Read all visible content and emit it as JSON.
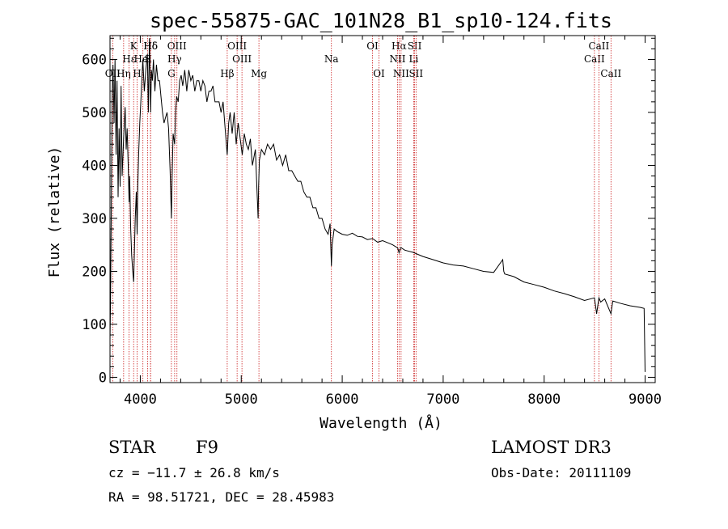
{
  "chart_data": {
    "type": "line",
    "title": "spec-55875-GAC_101N28_B1_sp10-124.fits",
    "xlabel": "Wavelength (Å)",
    "ylabel": "Flux (relative)",
    "xlim": [
      3700,
      9100
    ],
    "ylim": [
      -10,
      645
    ],
    "x_ticks": [
      4000,
      5000,
      6000,
      7000,
      8000,
      9000
    ],
    "y_ticks": [
      0,
      100,
      200,
      300,
      400,
      500,
      600
    ],
    "x_tick_labels": [
      "4000",
      "5000",
      "6000",
      "7000",
      "8000",
      "9000"
    ],
    "y_tick_labels": [
      "0",
      "100",
      "200",
      "300",
      "400",
      "500",
      "600"
    ],
    "grid": false,
    "series": [
      {
        "name": "flux",
        "x": [
          3700,
          3705,
          3712,
          3720,
          3730,
          3740,
          3750,
          3760,
          3770,
          3780,
          3790,
          3800,
          3810,
          3820,
          3835,
          3850,
          3860,
          3870,
          3880,
          3889,
          3895,
          3905,
          3915,
          3925,
          3934,
          3942,
          3950,
          3960,
          3968,
          3975,
          3985,
          3995,
          4005,
          4015,
          4025,
          4040,
          4055,
          4070,
          4080,
          4090,
          4102,
          4110,
          4120,
          4130,
          4145,
          4160,
          4175,
          4190,
          4205,
          4220,
          4235,
          4250,
          4265,
          4280,
          4295,
          4308,
          4315,
          4325,
          4340,
          4350,
          4360,
          4375,
          4390,
          4405,
          4420,
          4440,
          4460,
          4480,
          4500,
          4520,
          4540,
          4560,
          4580,
          4600,
          4620,
          4640,
          4660,
          4680,
          4700,
          4720,
          4740,
          4760,
          4780,
          4800,
          4820,
          4840,
          4861,
          4875,
          4890,
          4910,
          4930,
          4950,
          4970,
          4990,
          5010,
          5030,
          5050,
          5070,
          5090,
          5110,
          5140,
          5167,
          5172,
          5180,
          5200,
          5230,
          5260,
          5290,
          5320,
          5350,
          5380,
          5410,
          5440,
          5470,
          5500,
          5530,
          5560,
          5590,
          5620,
          5650,
          5680,
          5710,
          5740,
          5770,
          5800,
          5830,
          5860,
          5880,
          5893,
          5900,
          5920,
          5950,
          6000,
          6050,
          6100,
          6150,
          6200,
          6250,
          6300,
          6350,
          6400,
          6450,
          6500,
          6550,
          6563,
          6580,
          6620,
          6700,
          6800,
          6900,
          7000,
          7100,
          7200,
          7300,
          7400,
          7500,
          7590,
          7600,
          7610,
          7700,
          7800,
          7900,
          8000,
          8100,
          8200,
          8300,
          8400,
          8498,
          8520,
          8542,
          8560,
          8600,
          8662,
          8680,
          8750,
          8850,
          8950,
          8990,
          9000
        ],
        "y": [
          70,
          140,
          300,
          520,
          590,
          480,
          600,
          420,
          560,
          340,
          470,
          360,
          550,
          380,
          450,
          510,
          430,
          470,
          400,
          330,
          380,
          280,
          230,
          200,
          180,
          240,
          300,
          350,
          270,
          360,
          430,
          480,
          520,
          560,
          600,
          540,
          580,
          610,
          500,
          640,
          500,
          580,
          560,
          600,
          540,
          590,
          560,
          560,
          530,
          500,
          480,
          490,
          500,
          470,
          390,
          300,
          380,
          460,
          440,
          500,
          530,
          520,
          560,
          570,
          550,
          580,
          540,
          580,
          560,
          570,
          540,
          560,
          560,
          540,
          560,
          550,
          520,
          540,
          540,
          550,
          520,
          520,
          520,
          500,
          520,
          470,
          420,
          480,
          500,
          460,
          500,
          440,
          480,
          450,
          420,
          460,
          440,
          430,
          450,
          400,
          430,
          300,
          360,
          410,
          430,
          420,
          440,
          430,
          440,
          410,
          420,
          400,
          420,
          390,
          390,
          380,
          370,
          370,
          350,
          340,
          340,
          320,
          320,
          300,
          300,
          280,
          270,
          290,
          210,
          250,
          280,
          275,
          270,
          268,
          272,
          266,
          265,
          260,
          262,
          255,
          258,
          254,
          250,
          244,
          235,
          245,
          240,
          236,
          228,
          222,
          216,
          212,
          210,
          205,
          200,
          198,
          222,
          200,
          195,
          190,
          180,
          175,
          170,
          163,
          158,
          152,
          145,
          150,
          120,
          150,
          142,
          148,
          120,
          144,
          140,
          135,
          132,
          130,
          10
        ]
      }
    ],
    "annotation_lines": [
      {
        "label": "Hδ",
        "x": 4102,
        "row": 1
      },
      {
        "label": "OII",
        "x": 3727,
        "row": 3
      },
      {
        "label": "Hη",
        "x": 3835,
        "row": 3
      },
      {
        "label": "Hε",
        "x": 3889,
        "row": 2
      },
      {
        "label": "K",
        "x": 3934,
        "row": 1
      },
      {
        "label": "H",
        "x": 3968,
        "row": 3
      },
      {
        "label": "HeI",
        "x": 4026,
        "row": 2
      },
      {
        "label": "S",
        "x": 4072,
        "row": 2
      },
      {
        "label": "Hδ",
        "x": 4102,
        "row": 1
      },
      {
        "label": "OIII",
        "x": 4363,
        "row": 1
      },
      {
        "label": "Hγ",
        "x": 4340,
        "row": 2
      },
      {
        "label": "G",
        "x": 4308,
        "row": 3
      },
      {
        "label": "Hβ",
        "x": 4861,
        "row": 3
      },
      {
        "label": "OIII",
        "x": 4959,
        "row": 1
      },
      {
        "label": "OIII",
        "x": 5007,
        "row": 2
      },
      {
        "label": "Mg",
        "x": 5175,
        "row": 3
      },
      {
        "label": "Na",
        "x": 5893,
        "row": 2
      },
      {
        "label": "OI",
        "x": 6300,
        "row": 1
      },
      {
        "label": "OI",
        "x": 6364,
        "row": 3
      },
      {
        "label": "Hα",
        "x": 6563,
        "row": 1
      },
      {
        "label": "NII",
        "x": 6548,
        "row": 2
      },
      {
        "label": "NII",
        "x": 6583,
        "row": 3
      },
      {
        "label": "SII",
        "x": 6717,
        "row": 1
      },
      {
        "label": "Li",
        "x": 6708,
        "row": 2
      },
      {
        "label": "SII",
        "x": 6731,
        "row": 3
      },
      {
        "label": "CaII",
        "x": 8498,
        "row": 2
      },
      {
        "label": "CaII",
        "x": 8542,
        "row": 1
      },
      {
        "label": "CaII",
        "x": 8662,
        "row": 3
      }
    ]
  },
  "info": {
    "obj_class": "STAR",
    "subclass": "F9",
    "survey": "LAMOST DR3",
    "redshift": "cz = −11.7 ± 26.8 km/s",
    "obs_date": "Obs-Date: 20111109",
    "coords": "RA =  98.51721, DEC =  28.45983"
  },
  "colors": {
    "spectrum": "#000000",
    "annotation_line": "#cc2020",
    "axes": "#000000"
  }
}
